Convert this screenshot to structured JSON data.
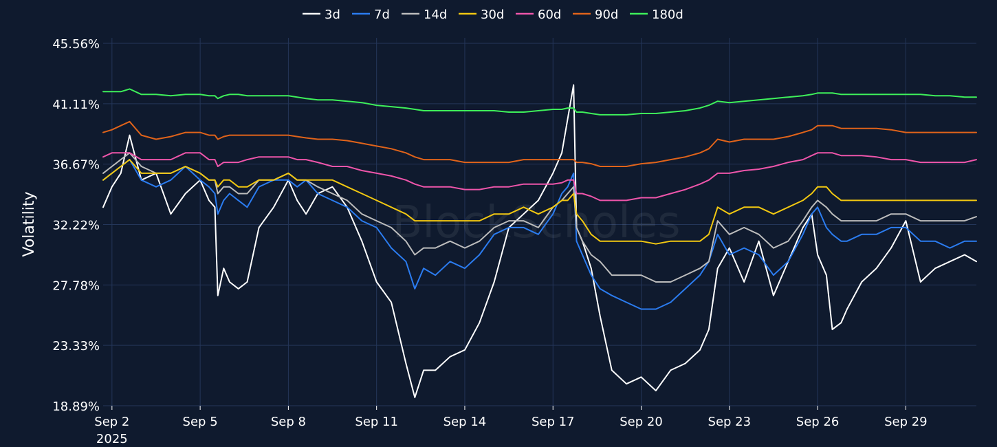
{
  "chart_data": {
    "type": "line",
    "ylabel": "Volatility",
    "xlabel": "",
    "title": "",
    "watermark": "BlockScholes",
    "legend_position": "top-center",
    "grid": true,
    "colors": {
      "background": "#0f1a2e",
      "grid": "#243659",
      "text": "#ffffff"
    },
    "ylim": [
      18.89,
      45.56
    ],
    "y_ticks": [
      "18.89%",
      "23.33%",
      "27.78%",
      "32.22%",
      "36.67%",
      "41.11%",
      "45.56%"
    ],
    "x_ticks": [
      "Sep 2",
      "Sep 5",
      "Sep 8",
      "Sep 11",
      "Sep 14",
      "Sep 17",
      "Sep 20",
      "Sep 23",
      "Sep 26",
      "Sep 29"
    ],
    "x_ticks_sub": [
      "2025",
      "",
      "",
      "",
      "",
      "",
      "",
      "",
      "",
      ""
    ],
    "x_tick_days": [
      2,
      5,
      8,
      11,
      14,
      17,
      20,
      23,
      26,
      29
    ],
    "xlim_days": [
      1.7,
      31.4
    ],
    "x": [
      1.7,
      2.0,
      2.3,
      2.6,
      3.0,
      3.5,
      4.0,
      4.5,
      5.0,
      5.3,
      5.5,
      5.6,
      5.8,
      6.0,
      6.3,
      6.6,
      7.0,
      7.5,
      8.0,
      8.3,
      8.6,
      9.0,
      9.5,
      10.0,
      10.5,
      11.0,
      11.5,
      12.0,
      12.3,
      12.6,
      13.0,
      13.5,
      14.0,
      14.5,
      15.0,
      15.5,
      16.0,
      16.5,
      17.0,
      17.3,
      17.5,
      17.7,
      17.8,
      18.0,
      18.3,
      18.6,
      19.0,
      19.5,
      20.0,
      20.5,
      21.0,
      21.5,
      22.0,
      22.3,
      22.6,
      23.0,
      23.5,
      24.0,
      24.5,
      25.0,
      25.5,
      25.8,
      26.0,
      26.3,
      26.5,
      26.8,
      27.0,
      27.5,
      28.0,
      28.5,
      29.0,
      29.5,
      30.0,
      30.5,
      31.0,
      31.4
    ],
    "series": [
      {
        "name": "3d",
        "color": "#ffffff",
        "values": [
          33.5,
          35.0,
          36.0,
          38.8,
          35.5,
          36.0,
          33.0,
          34.5,
          35.5,
          34.0,
          33.5,
          27.0,
          29.0,
          28.0,
          27.5,
          28.0,
          32.0,
          33.5,
          35.5,
          34.0,
          33.0,
          34.5,
          35.0,
          33.5,
          31.0,
          28.0,
          26.5,
          22.0,
          19.5,
          21.5,
          21.5,
          22.5,
          23.0,
          25.0,
          28.0,
          32.0,
          33.0,
          34.0,
          36.0,
          37.5,
          40.0,
          42.5,
          32.0,
          31.0,
          29.0,
          25.5,
          21.5,
          20.5,
          21.0,
          20.0,
          21.5,
          22.0,
          23.0,
          24.5,
          29.0,
          30.5,
          28.0,
          31.0,
          27.0,
          29.5,
          32.0,
          33.0,
          30.0,
          28.5,
          24.5,
          25.0,
          26.0,
          28.0,
          29.0,
          30.5,
          32.5,
          28.0,
          29.0,
          29.5,
          30.0,
          29.5
        ]
      },
      {
        "name": "7d",
        "color": "#2b7cf0",
        "values": [
          35.5,
          36.0,
          36.5,
          37.0,
          35.5,
          35.0,
          35.5,
          36.5,
          35.5,
          35.0,
          34.5,
          33.0,
          34.0,
          34.5,
          34.0,
          33.5,
          35.0,
          35.5,
          35.5,
          35.0,
          35.5,
          34.5,
          34.0,
          33.5,
          32.5,
          32.0,
          30.5,
          29.5,
          27.5,
          29.0,
          28.5,
          29.5,
          29.0,
          30.0,
          31.5,
          32.0,
          32.0,
          31.5,
          33.0,
          34.5,
          35.0,
          36.0,
          31.0,
          30.0,
          28.5,
          27.5,
          27.0,
          26.5,
          26.0,
          26.0,
          26.5,
          27.5,
          28.5,
          29.5,
          31.5,
          30.0,
          30.5,
          30.0,
          28.5,
          29.5,
          31.5,
          33.0,
          33.5,
          32.0,
          31.5,
          31.0,
          31.0,
          31.5,
          31.5,
          32.0,
          32.0,
          31.0,
          31.0,
          30.5,
          31.0,
          31.0
        ]
      },
      {
        "name": "14d",
        "color": "#bdbdbd",
        "values": [
          36.0,
          36.5,
          37.0,
          37.5,
          36.5,
          36.0,
          36.0,
          36.5,
          36.0,
          35.5,
          35.5,
          34.5,
          35.0,
          35.0,
          34.5,
          34.5,
          35.5,
          35.5,
          36.0,
          35.5,
          35.5,
          35.0,
          34.5,
          34.0,
          33.0,
          32.5,
          32.0,
          31.0,
          30.0,
          30.5,
          30.5,
          31.0,
          30.5,
          31.0,
          32.0,
          32.5,
          32.5,
          32.0,
          33.5,
          34.0,
          34.5,
          35.0,
          32.0,
          31.0,
          30.0,
          29.5,
          28.5,
          28.5,
          28.5,
          28.0,
          28.0,
          28.5,
          29.0,
          29.5,
          32.5,
          31.5,
          32.0,
          31.5,
          30.5,
          31.0,
          32.5,
          33.5,
          34.0,
          33.5,
          33.0,
          32.5,
          32.5,
          32.5,
          32.5,
          33.0,
          33.0,
          32.5,
          32.5,
          32.5,
          32.5,
          32.8
        ]
      },
      {
        "name": "30d",
        "color": "#f2c811",
        "values": [
          35.5,
          36.0,
          36.5,
          37.0,
          36.0,
          36.0,
          36.0,
          36.5,
          36.0,
          35.5,
          35.5,
          35.0,
          35.5,
          35.5,
          35.0,
          35.0,
          35.5,
          35.5,
          36.0,
          35.5,
          35.5,
          35.5,
          35.5,
          35.0,
          34.5,
          34.0,
          33.5,
          33.0,
          32.5,
          32.5,
          32.5,
          32.5,
          32.5,
          32.5,
          33.0,
          33.0,
          33.5,
          33.0,
          33.5,
          34.0,
          34.0,
          34.5,
          33.0,
          32.5,
          31.5,
          31.0,
          31.0,
          31.0,
          31.0,
          30.8,
          31.0,
          31.0,
          31.0,
          31.5,
          33.5,
          33.0,
          33.5,
          33.5,
          33.0,
          33.5,
          34.0,
          34.5,
          35.0,
          35.0,
          34.5,
          34.0,
          34.0,
          34.0,
          34.0,
          34.0,
          34.0,
          34.0,
          34.0,
          34.0,
          34.0,
          34.0
        ]
      },
      {
        "name": "60d",
        "color": "#ee55aa",
        "values": [
          37.2,
          37.5,
          37.5,
          37.5,
          37.0,
          37.0,
          37.0,
          37.5,
          37.5,
          37.0,
          37.0,
          36.5,
          36.8,
          36.8,
          36.8,
          37.0,
          37.2,
          37.2,
          37.2,
          37.0,
          37.0,
          36.8,
          36.5,
          36.5,
          36.2,
          36.0,
          35.8,
          35.5,
          35.2,
          35.0,
          35.0,
          35.0,
          34.8,
          34.8,
          35.0,
          35.0,
          35.2,
          35.2,
          35.2,
          35.3,
          35.5,
          35.5,
          34.5,
          34.5,
          34.3,
          34.0,
          34.0,
          34.0,
          34.2,
          34.2,
          34.5,
          34.8,
          35.2,
          35.5,
          36.0,
          36.0,
          36.2,
          36.3,
          36.5,
          36.8,
          37.0,
          37.3,
          37.5,
          37.5,
          37.5,
          37.3,
          37.3,
          37.3,
          37.2,
          37.0,
          37.0,
          36.8,
          36.8,
          36.8,
          36.8,
          37.0
        ]
      },
      {
        "name": "90d",
        "color": "#e0631a",
        "values": [
          39.0,
          39.2,
          39.5,
          39.8,
          38.8,
          38.5,
          38.7,
          39.0,
          39.0,
          38.8,
          38.8,
          38.5,
          38.7,
          38.8,
          38.8,
          38.8,
          38.8,
          38.8,
          38.8,
          38.7,
          38.6,
          38.5,
          38.5,
          38.4,
          38.2,
          38.0,
          37.8,
          37.5,
          37.2,
          37.0,
          37.0,
          37.0,
          36.8,
          36.8,
          36.8,
          36.8,
          37.0,
          37.0,
          37.0,
          37.0,
          37.0,
          37.0,
          36.8,
          36.8,
          36.7,
          36.5,
          36.5,
          36.5,
          36.7,
          36.8,
          37.0,
          37.2,
          37.5,
          37.8,
          38.5,
          38.3,
          38.5,
          38.5,
          38.5,
          38.7,
          39.0,
          39.2,
          39.5,
          39.5,
          39.5,
          39.3,
          39.3,
          39.3,
          39.3,
          39.2,
          39.0,
          39.0,
          39.0,
          39.0,
          39.0,
          39.0
        ]
      },
      {
        "name": "180d",
        "color": "#3ef05a",
        "values": [
          42.0,
          42.0,
          42.0,
          42.2,
          41.8,
          41.8,
          41.7,
          41.8,
          41.8,
          41.7,
          41.7,
          41.5,
          41.7,
          41.8,
          41.8,
          41.7,
          41.7,
          41.7,
          41.7,
          41.6,
          41.5,
          41.4,
          41.4,
          41.3,
          41.2,
          41.0,
          40.9,
          40.8,
          40.7,
          40.6,
          40.6,
          40.6,
          40.6,
          40.6,
          40.6,
          40.5,
          40.5,
          40.6,
          40.7,
          40.7,
          40.8,
          40.8,
          40.5,
          40.5,
          40.4,
          40.3,
          40.3,
          40.3,
          40.4,
          40.4,
          40.5,
          40.6,
          40.8,
          41.0,
          41.3,
          41.2,
          41.3,
          41.4,
          41.5,
          41.6,
          41.7,
          41.8,
          41.9,
          41.9,
          41.9,
          41.8,
          41.8,
          41.8,
          41.8,
          41.8,
          41.8,
          41.8,
          41.7,
          41.7,
          41.6,
          41.6
        ]
      }
    ]
  }
}
